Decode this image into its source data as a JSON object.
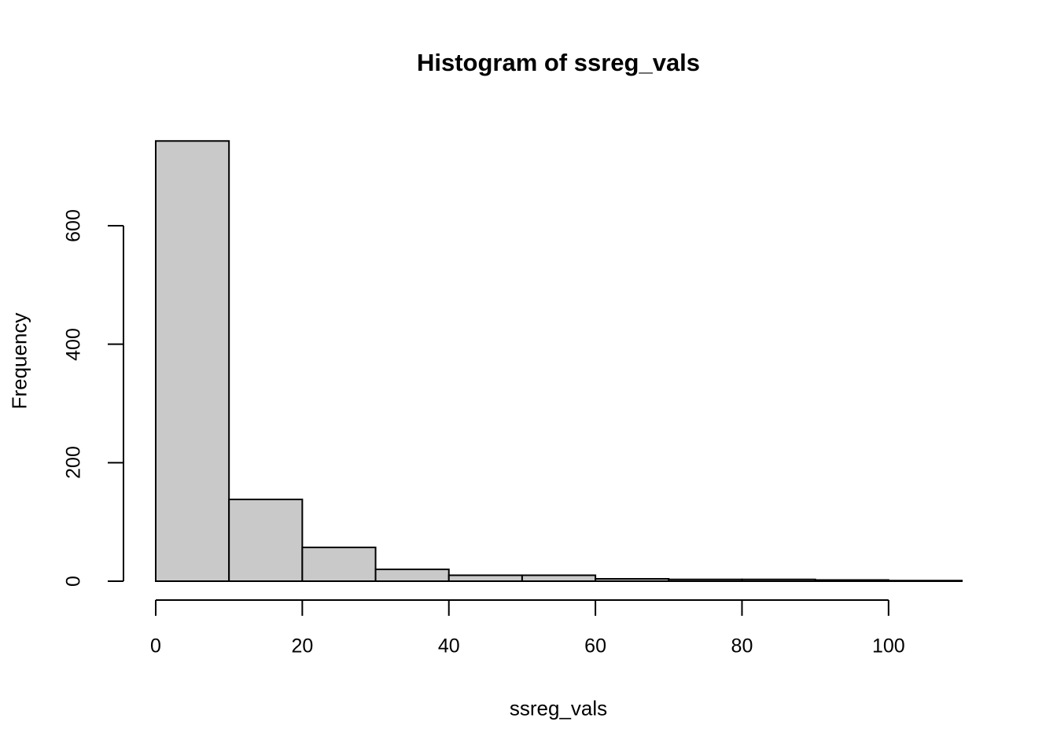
{
  "chart_data": {
    "type": "bar",
    "subtype": "histogram",
    "title": "Histogram of ssreg_vals",
    "xlabel": "ssreg_vals",
    "ylabel": "Frequency",
    "bin_edges": [
      0,
      10,
      20,
      30,
      40,
      50,
      60,
      70,
      80,
      90,
      100,
      110
    ],
    "counts": [
      743,
      138,
      57,
      20,
      10,
      10,
      4,
      3,
      3,
      2,
      1
    ],
    "x_ticks": [
      0,
      20,
      40,
      60,
      80,
      100
    ],
    "y_ticks": [
      0,
      200,
      400,
      600
    ],
    "xlim": [
      0,
      110
    ],
    "ylim": [
      0,
      743
    ],
    "grid": false,
    "legend": "none",
    "bar_fill": "#c9c9c9",
    "bar_stroke": "#000000",
    "axis_color": "#000000",
    "text_color": "#000000",
    "background": "#ffffff"
  }
}
